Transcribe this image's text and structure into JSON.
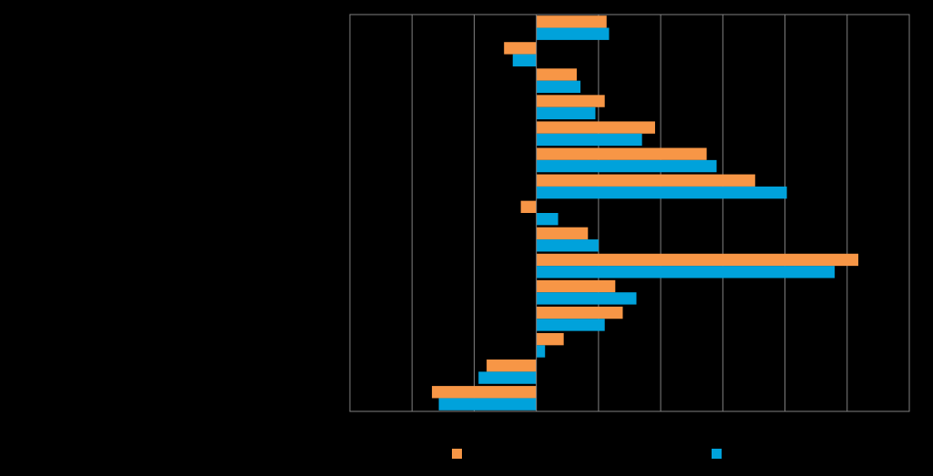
{
  "chart_data": {
    "type": "bar",
    "orientation": "horizontal",
    "title": "",
    "xlabel": "",
    "ylabel": "",
    "xlim": [
      -30,
      60
    ],
    "xticks": [
      -30,
      -20,
      -10,
      0,
      10,
      20,
      30,
      40,
      50,
      60
    ],
    "grid": "vertical",
    "legend_position": "bottom",
    "categories": [
      "",
      "",
      "",
      "",
      "",
      "",
      "",
      "",
      "",
      "",
      "",
      "",
      "",
      "",
      ""
    ],
    "series": [
      {
        "color": "#F79646",
        "values": [
          11.3,
          -5.2,
          6.5,
          11.0,
          19.1,
          27.4,
          35.2,
          -2.5,
          8.3,
          51.8,
          12.7,
          13.9,
          4.4,
          -8.0,
          -16.8
        ]
      },
      {
        "color": "#00A2DB",
        "values": [
          11.7,
          -3.8,
          7.1,
          9.5,
          17.0,
          29.0,
          40.3,
          3.5,
          10.0,
          48.0,
          16.1,
          11.0,
          1.4,
          -9.3,
          -15.7
        ]
      }
    ]
  }
}
